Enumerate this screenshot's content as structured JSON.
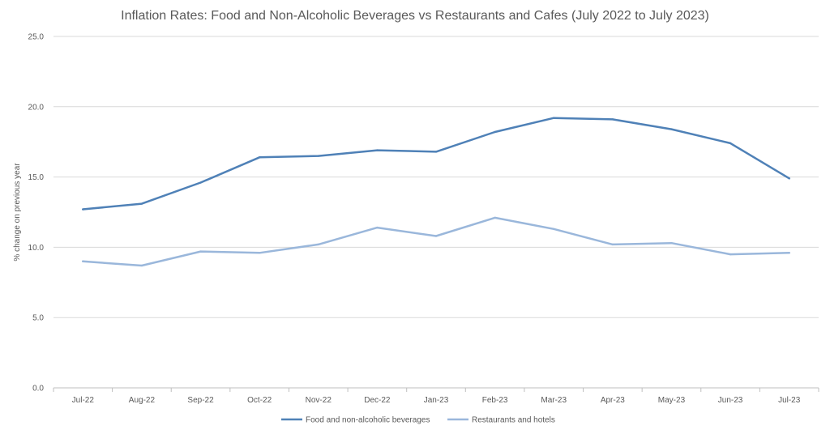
{
  "chart_data": {
    "type": "line",
    "title": "Inflation Rates: Food and Non-Alcoholic Beverages vs Restaurants and Cafes (July 2022 to July 2023)",
    "xlabel": "",
    "ylabel": "% change on previous year",
    "categories": [
      "Jul-22",
      "Aug-22",
      "Sep-22",
      "Oct-22",
      "Nov-22",
      "Dec-22",
      "Jan-23",
      "Feb-23",
      "Mar-23",
      "Apr-23",
      "May-23",
      "Jun-23",
      "Jul-23"
    ],
    "ylim": [
      0,
      25
    ],
    "yticks": [
      "0.0",
      "5.0",
      "10.0",
      "15.0",
      "20.0",
      "25.0"
    ],
    "grid": true,
    "legend_position": "bottom",
    "series": [
      {
        "name": "Food and non-alcoholic beverages",
        "color": "#4f81b7",
        "values": [
          12.7,
          13.1,
          14.6,
          16.4,
          16.5,
          16.9,
          16.8,
          18.2,
          19.2,
          19.1,
          18.4,
          17.4,
          14.9
        ]
      },
      {
        "name": "Restaurants and hotels",
        "color": "#9ab7db",
        "values": [
          9.0,
          8.7,
          9.7,
          9.6,
          10.2,
          11.4,
          10.8,
          12.1,
          11.3,
          10.2,
          10.3,
          9.5,
          9.6
        ]
      }
    ]
  }
}
